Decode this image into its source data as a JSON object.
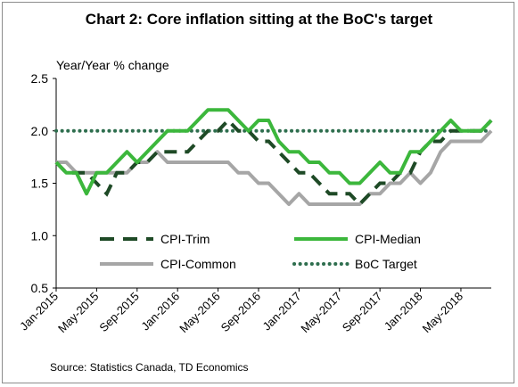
{
  "chart_data": {
    "type": "line",
    "title": "Chart 2: Core inflation sitting at the BoC's target",
    "ylabel": "Year/Year % change",
    "source": "Source: Statistics Canada, TD Economics",
    "ylim": [
      0.5,
      2.5
    ],
    "yticks": [
      "2.5",
      "2.0",
      "1.5",
      "1.0",
      "0.5"
    ],
    "ytick_values": [
      2.5,
      2.0,
      1.5,
      1.0,
      0.5
    ],
    "x": [
      "Jan-2015",
      "Feb-2015",
      "Mar-2015",
      "Apr-2015",
      "May-2015",
      "Jun-2015",
      "Jul-2015",
      "Aug-2015",
      "Sep-2015",
      "Oct-2015",
      "Nov-2015",
      "Dec-2015",
      "Jan-2016",
      "Feb-2016",
      "Mar-2016",
      "Apr-2016",
      "May-2016",
      "Jun-2016",
      "Jul-2016",
      "Aug-2016",
      "Sep-2016",
      "Oct-2016",
      "Nov-2016",
      "Dec-2016",
      "Jan-2017",
      "Feb-2017",
      "Mar-2017",
      "Apr-2017",
      "May-2017",
      "Jun-2017",
      "Jul-2017",
      "Aug-2017",
      "Sep-2017",
      "Oct-2017",
      "Nov-2017",
      "Dec-2017",
      "Jan-2018",
      "Feb-2018",
      "Mar-2018",
      "Apr-2018",
      "May-2018",
      "Jun-2018",
      "Jul-2018",
      "Aug-2018"
    ],
    "xtick_labels": [
      "Jan-2015",
      "May-2015",
      "Sep-2015",
      "Jan-2016",
      "May-2016",
      "Sep-2016",
      "Jan-2017",
      "May-2017",
      "Sep-2017",
      "Jan-2018",
      "May-2018"
    ],
    "xtick_indices": [
      0,
      4,
      8,
      12,
      16,
      20,
      24,
      28,
      32,
      36,
      40
    ],
    "series": [
      {
        "name": "CPI-Trim",
        "color": "#1e4a26",
        "style": "dash",
        "values": [
          1.7,
          1.6,
          1.6,
          1.6,
          1.5,
          1.4,
          1.6,
          1.6,
          1.7,
          1.7,
          1.8,
          1.8,
          1.8,
          1.8,
          1.9,
          2.0,
          2.0,
          2.1,
          2.0,
          2.0,
          1.9,
          1.9,
          1.8,
          1.7,
          1.6,
          1.6,
          1.5,
          1.4,
          1.4,
          1.4,
          1.3,
          1.4,
          1.5,
          1.5,
          1.6,
          1.6,
          1.8,
          1.9,
          1.9,
          2.0,
          2.0,
          2.0,
          2.0,
          2.1
        ]
      },
      {
        "name": "CPI-Median",
        "color": "#3cb73c",
        "style": "solid",
        "values": [
          1.7,
          1.6,
          1.6,
          1.4,
          1.6,
          1.6,
          1.7,
          1.8,
          1.7,
          1.8,
          1.9,
          2.0,
          2.0,
          2.0,
          2.1,
          2.2,
          2.2,
          2.2,
          2.1,
          2.0,
          2.1,
          2.1,
          1.9,
          1.8,
          1.8,
          1.7,
          1.7,
          1.6,
          1.6,
          1.5,
          1.5,
          1.6,
          1.7,
          1.6,
          1.6,
          1.8,
          1.8,
          1.9,
          2.0,
          2.1,
          2.0,
          2.0,
          2.0,
          2.1
        ]
      },
      {
        "name": "CPI-Common",
        "color": "#a6a6a6",
        "style": "solid",
        "values": [
          1.7,
          1.7,
          1.6,
          1.6,
          1.6,
          1.6,
          1.6,
          1.6,
          1.7,
          1.7,
          1.8,
          1.7,
          1.7,
          1.7,
          1.7,
          1.7,
          1.7,
          1.7,
          1.6,
          1.6,
          1.5,
          1.5,
          1.4,
          1.3,
          1.4,
          1.3,
          1.3,
          1.3,
          1.3,
          1.3,
          1.3,
          1.4,
          1.4,
          1.5,
          1.5,
          1.6,
          1.5,
          1.6,
          1.8,
          1.9,
          1.9,
          1.9,
          1.9,
          2.0
        ]
      },
      {
        "name": "BoC Target",
        "color": "#2e6e4e",
        "style": "dot",
        "values": [
          2.0,
          2.0,
          2.0,
          2.0,
          2.0,
          2.0,
          2.0,
          2.0,
          2.0,
          2.0,
          2.0,
          2.0,
          2.0,
          2.0,
          2.0,
          2.0,
          2.0,
          2.0,
          2.0,
          2.0,
          2.0,
          2.0,
          2.0,
          2.0,
          2.0,
          2.0,
          2.0,
          2.0,
          2.0,
          2.0,
          2.0,
          2.0,
          2.0,
          2.0,
          2.0,
          2.0,
          2.0,
          2.0,
          2.0,
          2.0,
          2.0,
          2.0,
          2.0,
          2.0
        ]
      }
    ],
    "legend": "inside-bottom",
    "grid": false
  }
}
